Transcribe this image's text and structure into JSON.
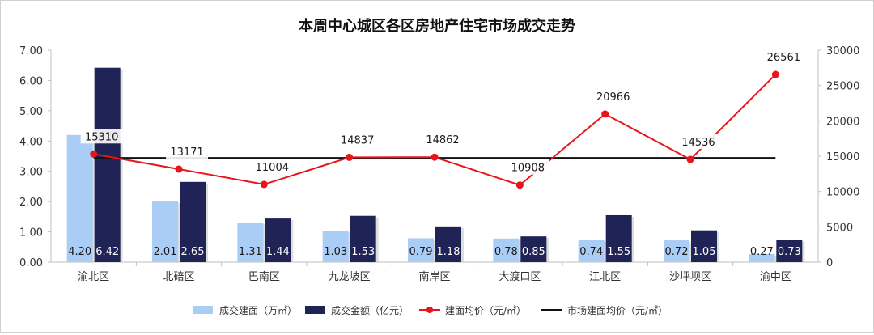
{
  "chart_data": {
    "type": "bar+line",
    "title": "本周中心城区各区房地产住宅市场成交走势",
    "categories": [
      "渝北区",
      "北碚区",
      "巴南区",
      "九龙坡区",
      "南岸区",
      "大渡口区",
      "江北区",
      "沙坪坝区",
      "渝中区"
    ],
    "series": [
      {
        "name": "成交建面（万㎡）",
        "type": "bar",
        "axis": "left",
        "color": "#a9cdf5",
        "values": [
          4.2,
          2.01,
          1.31,
          1.03,
          0.79,
          0.78,
          0.74,
          0.72,
          0.27
        ],
        "labels": [
          "4.20",
          "2.01",
          "1.31",
          "1.03",
          "0.79",
          "0.78",
          "0.74",
          "0.72",
          "0.27"
        ]
      },
      {
        "name": "成交金额（亿元）",
        "type": "bar",
        "axis": "left",
        "color": "#1f2355",
        "values": [
          6.42,
          2.65,
          1.44,
          1.53,
          1.18,
          0.85,
          1.55,
          1.05,
          0.73
        ],
        "labels": [
          "6.42",
          "2.65",
          "1.44",
          "1.53",
          "1.18",
          "0.85",
          "1.55",
          "1.05",
          "0.73"
        ]
      },
      {
        "name": "建面均价（元/㎡）",
        "type": "line",
        "axis": "right",
        "color": "#e8141c",
        "values": [
          15310,
          13171,
          11004,
          14837,
          14862,
          10908,
          20966,
          14536,
          26561
        ],
        "labels": [
          "15310",
          "13171",
          "11004",
          "14837",
          "14862",
          "10908",
          "20966",
          "14536",
          "26561"
        ]
      },
      {
        "name": "市场建面均价（元/㎡）",
        "type": "line",
        "axis": "right",
        "color": "#111111",
        "values": [
          14750,
          14750,
          14750,
          14750,
          14750,
          14750,
          14750,
          14750,
          14750
        ]
      }
    ],
    "y_left": {
      "min": 0,
      "max": 7,
      "ticks": [
        "0.00",
        "1.00",
        "2.00",
        "3.00",
        "4.00",
        "5.00",
        "6.00",
        "7.00"
      ]
    },
    "y_right": {
      "min": 0,
      "max": 30000,
      "ticks": [
        "0",
        "5000",
        "10000",
        "15000",
        "20000",
        "25000",
        "30000"
      ]
    },
    "grid": false,
    "legend_position": "bottom"
  }
}
